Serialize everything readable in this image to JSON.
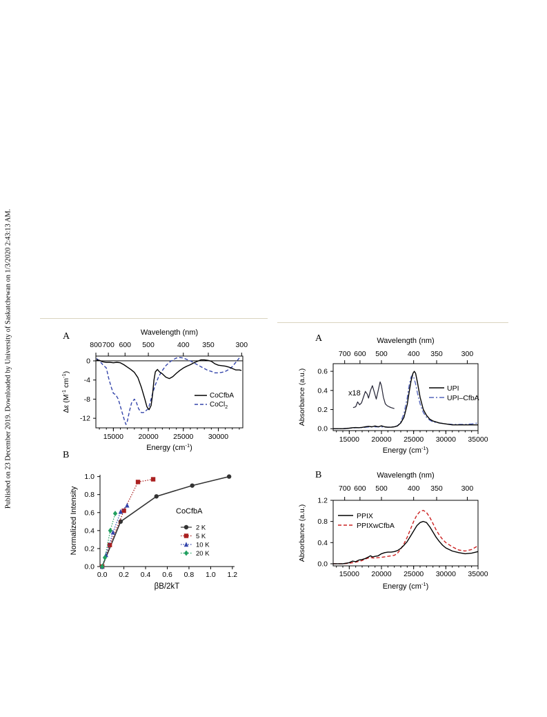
{
  "side_note": "Published on 23 December 2019. Downloaded by University of Saskatchewan on 1/3/2020 2:43:13 AM.",
  "colors": {
    "black": "#000000",
    "blue": "#3344aa",
    "red": "#cc2020",
    "green": "#22a060",
    "rule": "#d9d3bf"
  },
  "chart_data": [
    {
      "panel": "A",
      "type": "line",
      "top_axis_label": "Wavelength (nm)",
      "top_ticks": [
        800,
        700,
        600,
        500,
        400,
        350,
        300
      ],
      "xlabel_main": "Energy (cm",
      "xlabel_sup": "-1",
      "xlabel_end": ")",
      "x_ticks": [
        15000,
        20000,
        25000,
        30000
      ],
      "xlim": [
        12500,
        33500
      ],
      "ylabel_main": "Δε (M",
      "ylabel_sup1": "-1",
      "ylabel_mid": " cm",
      "ylabel_sup2": "-1",
      "ylabel_end": ")",
      "y_ticks": [
        0,
        -4,
        -8,
        -12
      ],
      "ylim": [
        -14,
        1
      ],
      "series": [
        {
          "name": "CoCfbA",
          "style": "solid",
          "color": "#000000",
          "x": [
            12600,
            13000,
            13500,
            14000,
            14500,
            15000,
            15500,
            16000,
            16500,
            17000,
            17500,
            18000,
            18500,
            19000,
            19500,
            19800,
            20100,
            20400,
            20600,
            20800,
            21000,
            21300,
            21600,
            22000,
            22500,
            23000,
            23500,
            24000,
            24500,
            25000,
            25500,
            26000,
            26500,
            27000,
            27500,
            28000,
            28500,
            29000,
            29500,
            30000,
            30500,
            31000,
            31500,
            32000,
            32500,
            33000,
            33300
          ],
          "y": [
            0.2,
            0.1,
            -0.2,
            -0.3,
            -0.3,
            -0.4,
            -0.3,
            -0.4,
            -0.8,
            -1.3,
            -1.8,
            -2.4,
            -3.5,
            -5.5,
            -8,
            -9.6,
            -10.2,
            -9.3,
            -7,
            -4,
            -2.3,
            -1.8,
            -2.3,
            -2.7,
            -3.4,
            -3.7,
            -3.3,
            -2.6,
            -2,
            -1.5,
            -1.1,
            -0.8,
            -0.4,
            -0.1,
            0.2,
            0.2,
            0.1,
            -0.1,
            -0.6,
            -0.9,
            -1,
            -1.1,
            -1.3,
            -1.6,
            -1.9,
            -1.9,
            -2
          ]
        },
        {
          "name": "CoCl",
          "name_sub": "2",
          "style": "dash",
          "color": "#3344aa",
          "x": [
            12600,
            13000,
            13500,
            14000,
            14300,
            14700,
            15000,
            15300,
            15700,
            16000,
            16300,
            16600,
            16800,
            17000,
            17300,
            17600,
            18000,
            18300,
            18600,
            19000,
            19300,
            19600,
            19900,
            20100,
            20300,
            20600,
            21000,
            21500,
            22000,
            22500,
            23000,
            23500,
            24000,
            24500,
            25000,
            25500,
            26000,
            26500,
            27000,
            27500,
            28000,
            28500,
            29000,
            29500,
            30000,
            30500,
            31000,
            31500,
            32000,
            32500,
            33000
          ],
          "y": [
            0.5,
            0,
            -0.8,
            -1.5,
            -3.5,
            -5.5,
            -6.8,
            -7,
            -8,
            -9.5,
            -11,
            -12.5,
            -13.3,
            -12.6,
            -10.5,
            -8.8,
            -8,
            -8.7,
            -10,
            -10.8,
            -10.8,
            -10.5,
            -10.1,
            -9.5,
            -8.5,
            -6.8,
            -5,
            -3.2,
            -2,
            -1,
            -0.3,
            0.2,
            0.6,
            0.7,
            0.6,
            0.3,
            0,
            -0.4,
            -0.8,
            -1.2,
            -1.6,
            -2,
            -2.2,
            -2.5,
            -2.5,
            -2.4,
            -2.2,
            -1.8,
            -1.2,
            -0.3,
            0.6
          ]
        }
      ]
    },
    {
      "panel": "B",
      "type": "line",
      "title": "CoCfbA",
      "xlabel": "βB/2kT",
      "ylabel": "Normalized Intensity",
      "x_ticks": [
        0.0,
        0.2,
        0.4,
        0.6,
        0.8,
        1.0,
        1.2
      ],
      "y_ticks": [
        0.0,
        0.2,
        0.4,
        0.6,
        0.8,
        1.0
      ],
      "xlim": [
        -0.02,
        1.22
      ],
      "ylim": [
        0,
        1.02
      ],
      "series": [
        {
          "name": "2 K",
          "color": "#333333",
          "marker": "circle",
          "style": "solid",
          "x": [
            0,
            0.17,
            0.5,
            0.83,
            1.17
          ],
          "y": [
            0,
            0.5,
            0.78,
            0.9,
            1.0
          ]
        },
        {
          "name": "5 K",
          "color": "#aa2020",
          "marker": "square",
          "style": "dot",
          "x": [
            0,
            0.07,
            0.2,
            0.33,
            0.47
          ],
          "y": [
            0,
            0.24,
            0.62,
            0.94,
            0.97
          ]
        },
        {
          "name": "10 K",
          "color": "#3344aa",
          "marker": "triangle",
          "style": "dot",
          "x": [
            0,
            0.035,
            0.1,
            0.17,
            0.23
          ],
          "y": [
            0,
            0.13,
            0.38,
            0.61,
            0.68
          ]
        },
        {
          "name": "20 K",
          "color": "#22a060",
          "marker": "diamond",
          "style": "dot",
          "x": [
            0,
            0.025,
            0.075,
            0.12
          ],
          "y": [
            0,
            0.1,
            0.4,
            0.59
          ]
        }
      ]
    },
    {
      "panel": "A",
      "type": "line",
      "top_axis_label": "Wavelength (nm)",
      "top_ticks": [
        700,
        600,
        500,
        400,
        350,
        300
      ],
      "xlabel_main": "Energy (cm",
      "xlabel_sup": "-1",
      "xlabel_end": ")",
      "x_ticks": [
        15000,
        20000,
        25000,
        30000,
        35000
      ],
      "xlim": [
        12500,
        35000
      ],
      "ylabel": "Absorbance (a.u.)",
      "y_ticks": [
        0.0,
        0.2,
        0.4,
        0.6
      ],
      "ylim": [
        -0.02,
        0.68
      ],
      "inset_label": "x18",
      "series": [
        {
          "name": "UPI",
          "style": "solid",
          "color": "#000000",
          "x": [
            12500,
            14000,
            15000,
            15500,
            16000,
            16500,
            17000,
            17500,
            18000,
            18500,
            19000,
            19500,
            20000,
            20500,
            21000,
            21500,
            22000,
            22500,
            23000,
            23500,
            24000,
            24300,
            24600,
            24900,
            25100,
            25300,
            25600,
            26000,
            26500,
            27000,
            27500,
            28000,
            29000,
            30000,
            31000,
            32000,
            33000,
            34000,
            35000
          ],
          "y": [
            0,
            0,
            0.005,
            0.01,
            0.012,
            0.01,
            0.014,
            0.02,
            0.025,
            0.02,
            0.028,
            0.02,
            0.03,
            0.02,
            0.015,
            0.015,
            0.02,
            0.03,
            0.06,
            0.12,
            0.25,
            0.38,
            0.5,
            0.58,
            0.6,
            0.58,
            0.48,
            0.33,
            0.2,
            0.14,
            0.1,
            0.08,
            0.06,
            0.05,
            0.04,
            0.04,
            0.04,
            0.04,
            0.04
          ]
        },
        {
          "name": "UPI–CfbA",
          "style": "dashdot",
          "color": "#5566bb",
          "x": [
            12500,
            14000,
            15000,
            16000,
            17000,
            18000,
            19000,
            20000,
            21000,
            22000,
            22500,
            23000,
            23500,
            24000,
            24300,
            24600,
            24800,
            25000,
            25300,
            25600,
            26000,
            26500,
            27000,
            27500,
            28000,
            29000,
            30000,
            31000,
            32000,
            33000,
            34000,
            35000
          ],
          "y": [
            0,
            0,
            0.005,
            0.01,
            0.012,
            0.018,
            0.02,
            0.02,
            0.015,
            0.02,
            0.03,
            0.07,
            0.16,
            0.32,
            0.45,
            0.54,
            0.56,
            0.54,
            0.47,
            0.37,
            0.26,
            0.17,
            0.12,
            0.09,
            0.07,
            0.06,
            0.05,
            0.045,
            0.045,
            0.045,
            0.05,
            0.06
          ]
        },
        {
          "name": "inset",
          "style": "solid",
          "color": "#222233",
          "inset": true,
          "x": [
            15600,
            16000,
            16300,
            16600,
            16900,
            17200,
            17500,
            17800,
            18000,
            18300,
            18600,
            18900,
            19200,
            19500,
            19800,
            20000,
            20300,
            20600,
            20900,
            21200,
            21500,
            22000
          ],
          "y": [
            0.22,
            0.23,
            0.28,
            0.25,
            0.27,
            0.33,
            0.39,
            0.36,
            0.32,
            0.4,
            0.45,
            0.38,
            0.31,
            0.4,
            0.49,
            0.45,
            0.33,
            0.26,
            0.24,
            0.23,
            0.22,
            0.21
          ]
        }
      ]
    },
    {
      "panel": "B",
      "type": "line",
      "top_axis_label": "Wavelength (nm)",
      "top_ticks": [
        700,
        600,
        500,
        400,
        350,
        300
      ],
      "xlabel_main": "Energy (cm",
      "xlabel_sup": "-1",
      "xlabel_end": ")",
      "x_ticks": [
        15000,
        20000,
        25000,
        30000,
        35000
      ],
      "xlim": [
        12500,
        35000
      ],
      "ylabel": "Absorbance (a.u.)",
      "y_ticks": [
        0.0,
        0.4,
        0.8,
        1.2
      ],
      "ylim": [
        -0.04,
        1.2
      ],
      "series": [
        {
          "name": "PPIX",
          "style": "solid",
          "color": "#000000",
          "x": [
            12500,
            14000,
            15000,
            15500,
            16000,
            16500,
            17000,
            17500,
            18000,
            18300,
            18600,
            19000,
            19500,
            20000,
            20500,
            21000,
            21500,
            22000,
            22500,
            23000,
            23500,
            24000,
            24500,
            25000,
            25500,
            26000,
            26500,
            27000,
            27500,
            28000,
            28500,
            29000,
            29500,
            30000,
            31000,
            32000,
            33000,
            34000,
            35000
          ],
          "y": [
            0,
            0,
            0.02,
            0.05,
            0.04,
            0.07,
            0.08,
            0.1,
            0.13,
            0.15,
            0.13,
            0.14,
            0.15,
            0.19,
            0.21,
            0.22,
            0.22,
            0.23,
            0.25,
            0.29,
            0.35,
            0.42,
            0.52,
            0.62,
            0.72,
            0.78,
            0.8,
            0.78,
            0.7,
            0.6,
            0.5,
            0.42,
            0.35,
            0.3,
            0.24,
            0.21,
            0.19,
            0.2,
            0.23
          ]
        },
        {
          "name": "PPIXwCfbA",
          "style": "dash",
          "color": "#cc2020",
          "x": [
            12500,
            14000,
            15000,
            16000,
            17000,
            17500,
            18000,
            18300,
            18600,
            19000,
            20000,
            21000,
            22000,
            22500,
            23000,
            23500,
            24000,
            24500,
            25000,
            25500,
            26000,
            26500,
            27000,
            27500,
            28000,
            28500,
            29000,
            29500,
            30000,
            31000,
            32000,
            33000,
            34000,
            35000
          ],
          "y": [
            0,
            0,
            0.01,
            0.03,
            0.06,
            0.09,
            0.11,
            0.12,
            0.11,
            0.11,
            0.12,
            0.14,
            0.16,
            0.2,
            0.28,
            0.38,
            0.5,
            0.65,
            0.8,
            0.92,
            0.99,
            1.01,
            0.97,
            0.88,
            0.76,
            0.64,
            0.54,
            0.46,
            0.4,
            0.32,
            0.26,
            0.24,
            0.27,
            0.34
          ]
        }
      ]
    }
  ]
}
